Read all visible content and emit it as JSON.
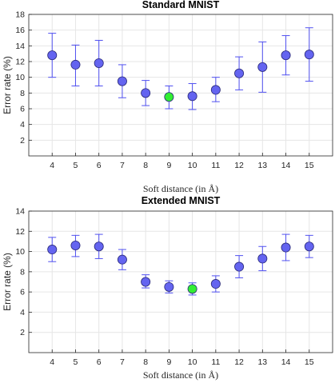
{
  "chart_data": [
    {
      "type": "scatter",
      "title": "Standard MNIST",
      "xlabel": "Soft distance (in Å)",
      "ylabel": "Error rate (%)",
      "xlim": [
        3,
        16
      ],
      "ylim": [
        0,
        18
      ],
      "xticks": [
        4,
        5,
        6,
        7,
        8,
        9,
        10,
        11,
        12,
        13,
        14,
        15
      ],
      "yticks": [
        2,
        4,
        6,
        8,
        10,
        12,
        14,
        16,
        18
      ],
      "grid": true,
      "x": [
        4,
        5,
        6,
        7,
        8,
        9,
        10,
        11,
        12,
        13,
        14,
        15
      ],
      "y": [
        12.8,
        11.6,
        11.8,
        9.5,
        8.0,
        7.5,
        7.6,
        8.4,
        10.5,
        11.3,
        12.8,
        12.9
      ],
      "err_lower": [
        10.0,
        8.9,
        8.9,
        7.4,
        6.4,
        6.0,
        5.9,
        6.9,
        8.4,
        8.1,
        10.3,
        9.5
      ],
      "err_upper": [
        15.6,
        14.1,
        14.7,
        11.6,
        9.6,
        8.9,
        9.2,
        10.0,
        12.6,
        14.5,
        15.3,
        16.3
      ],
      "highlight_x": 9,
      "marker_color": "#6464f0",
      "highlight_color": "#33ee33",
      "errorbar_color": "#5050f0"
    },
    {
      "type": "scatter",
      "title": "Extended MNIST",
      "xlabel": "Soft distance (in Å)",
      "ylabel": "Error rate (%)",
      "xlim": [
        3,
        16
      ],
      "ylim": [
        0,
        14
      ],
      "xticks": [
        4,
        5,
        6,
        7,
        8,
        9,
        10,
        11,
        12,
        13,
        14,
        15
      ],
      "yticks": [
        2,
        4,
        6,
        8,
        10,
        12,
        14
      ],
      "grid": true,
      "x": [
        4,
        5,
        6,
        7,
        8,
        9,
        10,
        11,
        12,
        13,
        14,
        15
      ],
      "y": [
        10.2,
        10.6,
        10.5,
        9.2,
        7.0,
        6.5,
        6.3,
        6.8,
        8.5,
        9.3,
        10.4,
        10.5
      ],
      "err_lower": [
        9.0,
        9.5,
        9.3,
        8.2,
        6.4,
        5.9,
        5.7,
        6.0,
        7.4,
        8.1,
        9.1,
        9.4
      ],
      "err_upper": [
        11.4,
        11.6,
        11.7,
        10.2,
        7.7,
        7.1,
        6.9,
        7.6,
        9.6,
        10.5,
        11.7,
        11.6
      ],
      "highlight_x": 10,
      "marker_color": "#6464f0",
      "highlight_color": "#33ee33",
      "errorbar_color": "#5050f0"
    }
  ]
}
